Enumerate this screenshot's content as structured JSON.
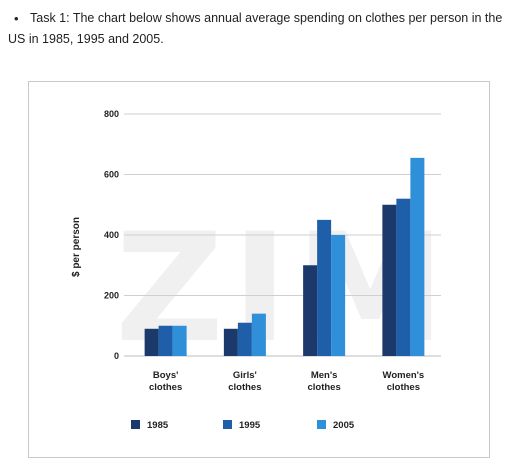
{
  "task": {
    "bullet": "•",
    "line1": "Task 1: The chart below shows annual average spending on clothes per person in the",
    "line2": "US in 1985, 1995 and 2005."
  },
  "chart_data": {
    "type": "bar",
    "ylabel": "$ per person",
    "ylim": [
      0,
      800
    ],
    "yticks": [
      "0",
      "200",
      "400",
      "600",
      "800"
    ],
    "grid": true,
    "legend_position": "bottom",
    "watermark": "ZIM",
    "categories": [
      [
        "Boys'",
        "clothes"
      ],
      [
        "Girls'",
        "clothes"
      ],
      [
        "Men's",
        "clothes"
      ],
      [
        "Women's",
        "clothes"
      ]
    ],
    "series": [
      {
        "name": "1985",
        "color": "#1b3a6b",
        "values": [
          90,
          90,
          300,
          500
        ]
      },
      {
        "name": "1995",
        "color": "#1f5ea8",
        "values": [
          100,
          110,
          450,
          520
        ]
      },
      {
        "name": "2005",
        "color": "#2f8fd8",
        "values": [
          100,
          140,
          400,
          655
        ]
      }
    ]
  }
}
